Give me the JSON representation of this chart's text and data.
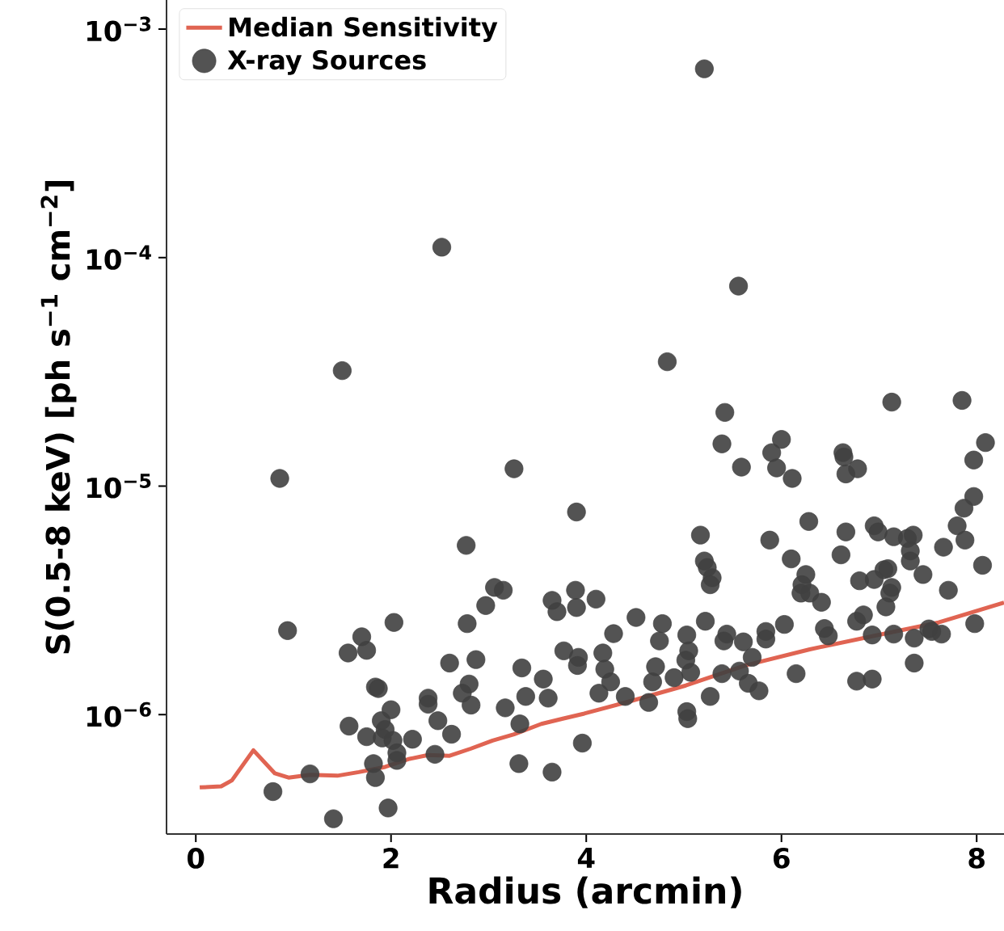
{
  "chart_data": {
    "type": "scatter",
    "xlabel": "Radius (arcmin)",
    "ylabel": "S(0.5-8 keV) [ph s$^{−1}$ cm$^{−2}$]",
    "log": "y",
    "xlim": [
      -0.3,
      8.28
    ],
    "xticks": [
      0,
      2,
      4,
      6,
      8
    ],
    "ylim": [
      3e-07,
      0.00134
    ],
    "yticks": [
      {
        "value": 1e-06,
        "label": "10$^{−6}$"
      },
      {
        "value": 1e-05,
        "label": "10$^{−5}$"
      },
      {
        "value": 0.0001,
        "label": "10$^{−4}$"
      },
      {
        "value": 0.001,
        "label": "10$^{−3}$"
      }
    ],
    "legend": "top left",
    "series": [
      {
        "name": "Median Sensitivity",
        "type": "line",
        "color": "#e06452",
        "x": [
          0.04,
          0.26,
          0.37,
          0.59,
          0.81,
          0.95,
          1.17,
          1.45,
          1.67,
          1.94,
          2.19,
          2.38,
          2.6,
          2.82,
          3.04,
          3.26,
          3.54,
          3.76,
          3.98,
          4.47,
          5.02,
          5.63,
          6.29,
          6.95,
          7.61,
          8.28
        ],
        "values": [
          4.8e-07,
          4.85e-07,
          5.15e-07,
          6.98e-07,
          5.53e-07,
          5.3e-07,
          5.45e-07,
          5.4e-07,
          5.6e-07,
          5.9e-07,
          6.4e-07,
          6.65e-07,
          6.6e-07,
          7.1e-07,
          7.7e-07,
          8.2e-07,
          9.1e-07,
          9.6e-07,
          1.01e-06,
          1.15e-06,
          1.34e-06,
          1.64e-06,
          1.93e-06,
          2.21e-06,
          2.53e-06,
          3.09e-06
        ]
      },
      {
        "name": "X-ray Sources",
        "marker": "circle",
        "color": "#404040",
        "x": [
          5.21,
          2.52,
          1.5,
          5.56,
          4.83,
          0.86,
          3.26,
          0.94,
          0.79,
          1.17,
          1.41,
          1.97,
          2.77,
          3.9,
          1.56,
          1.7,
          1.75,
          2.03,
          1.84,
          1.87,
          1.57,
          1.75,
          1.9,
          1.94,
          1.91,
          2.0,
          2.02,
          2.06,
          1.82,
          1.84,
          2.06,
          2.22,
          2.38,
          2.38,
          2.48,
          2.45,
          2.62,
          2.6,
          2.78,
          2.87,
          2.8,
          2.73,
          2.82,
          2.97,
          3.06,
          3.15,
          3.34,
          3.38,
          3.17,
          3.32,
          3.31,
          3.56,
          3.61,
          3.65,
          3.65,
          3.7,
          3.77,
          3.89,
          3.9,
          3.92,
          3.91,
          3.96,
          7.13,
          7.85,
          5.42,
          5.39,
          6.0,
          5.9,
          5.95,
          5.59,
          6.11,
          6.63,
          6.64,
          6.66,
          6.78,
          8.09,
          7.97,
          7.97,
          7.87,
          7.8,
          7.88,
          8.06,
          7.71,
          7.66,
          7.98,
          6.28,
          6.66,
          6.95,
          6.99,
          7.15,
          7.29,
          7.35,
          7.32,
          7.32,
          7.45,
          6.61,
          7.09,
          7.05,
          6.95,
          6.8,
          7.13,
          7.11,
          7.07,
          5.88,
          6.1,
          5.17,
          5.21,
          5.24,
          5.29,
          5.27,
          6.25,
          6.21,
          6.2,
          6.29,
          6.41,
          4.1,
          4.51,
          4.78,
          4.28,
          4.17,
          4.19,
          4.25,
          4.13,
          4.4,
          4.64,
          4.68,
          4.71,
          4.75,
          4.9,
          5.03,
          5.05,
          5.02,
          5.07,
          5.03,
          5.04,
          5.22,
          5.27,
          5.44,
          5.41,
          5.61,
          5.39,
          5.57,
          5.7,
          5.66,
          5.77,
          5.84,
          5.84,
          6.03,
          6.15,
          6.44,
          6.48,
          6.77,
          6.84,
          6.93,
          6.77,
          6.93,
          7.15,
          7.36,
          7.36,
          7.51,
          7.54,
          7.64
        ],
        "values": [
          0.00067,
          0.000111,
          3.2e-05,
          7.5e-05,
          3.5e-05,
          1.08e-05,
          1.19e-05,
          2.33e-06,
          4.6e-07,
          5.5e-07,
          3.5e-07,
          3.9e-07,
          5.5e-06,
          7.7e-06,
          1.86e-06,
          2.19e-06,
          1.91e-06,
          2.53e-06,
          1.32e-06,
          1.3e-06,
          8.9e-07,
          8e-07,
          9.4e-07,
          8.6e-07,
          7.9e-07,
          1.05e-06,
          7.7e-07,
          6.8e-07,
          6.1e-07,
          5.3e-07,
          6.3e-07,
          7.8e-07,
          1.18e-06,
          1.11e-06,
          9.4e-07,
          6.7e-07,
          8.2e-07,
          1.68e-06,
          2.5e-06,
          1.74e-06,
          1.36e-06,
          1.24e-06,
          1.1e-06,
          3e-06,
          3.6e-06,
          3.5e-06,
          1.6e-06,
          1.2e-06,
          1.07e-06,
          9.1e-07,
          6.1e-07,
          1.43e-06,
          1.18e-06,
          5.6e-07,
          3.16e-06,
          2.82e-06,
          1.9e-06,
          3.5e-06,
          2.94e-06,
          1.78e-06,
          1.64e-06,
          7.5e-07,
          2.33e-05,
          2.37e-05,
          2.1e-05,
          1.53e-05,
          1.6e-05,
          1.4e-05,
          1.2e-05,
          1.21e-05,
          1.08e-05,
          1.4e-05,
          1.34e-05,
          1.13e-05,
          1.19e-05,
          1.55e-05,
          1.3e-05,
          9e-06,
          8e-06,
          6.7e-06,
          5.8e-06,
          4.5e-06,
          3.5e-06,
          5.4e-06,
          2.5e-06,
          7e-06,
          6.3e-06,
          6.7e-06,
          6.3e-06,
          6e-06,
          5.9e-06,
          6.1e-06,
          5.2e-06,
          4.7e-06,
          4.1e-06,
          5e-06,
          4.35e-06,
          4.3e-06,
          3.9e-06,
          3.85e-06,
          3.6e-06,
          3.4e-06,
          2.96e-06,
          5.8e-06,
          4.8e-06,
          6.1e-06,
          4.7e-06,
          4.4e-06,
          3.97e-06,
          3.7e-06,
          4.1e-06,
          3.7e-06,
          3.4e-06,
          3.4e-06,
          3.1e-06,
          3.2e-06,
          2.66e-06,
          2.5e-06,
          2.26e-06,
          1.86e-06,
          1.58e-06,
          1.39e-06,
          1.24e-06,
          1.2e-06,
          1.13e-06,
          1.39e-06,
          1.62e-06,
          2.1e-06,
          1.45e-06,
          2.23e-06,
          1.9e-06,
          1.73e-06,
          1.53e-06,
          1.03e-06,
          9.6e-07,
          2.56e-06,
          1.2e-06,
          2.25e-06,
          2.1e-06,
          2.08e-06,
          1.51e-06,
          1.55e-06,
          1.78e-06,
          1.37e-06,
          1.27e-06,
          2.31e-06,
          2.14e-06,
          2.48e-06,
          1.51e-06,
          2.38e-06,
          2.21e-06,
          2.56e-06,
          2.73e-06,
          2.23e-06,
          1.4e-06,
          1.43e-06,
          2.25e-06,
          2.16e-06,
          1.68e-06,
          2.37e-06,
          2.31e-06,
          2.25e-06
        ]
      }
    ]
  }
}
